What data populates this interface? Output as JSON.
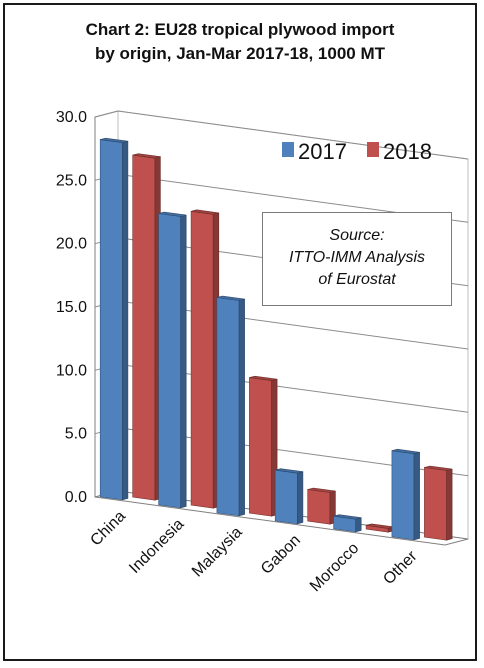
{
  "chart_data": {
    "type": "bar",
    "title_lines": [
      "Chart 2: EU28 tropical plywood import",
      "by origin, Jan-Mar 2017-18, 1000 MT"
    ],
    "categories": [
      "China",
      "Indonesia",
      "Malaysia",
      "Gabon",
      "Morocco",
      "Other"
    ],
    "series": [
      {
        "name": "2017",
        "color": "#4f81bd",
        "values": [
          28.2,
          23.0,
          17.0,
          4.0,
          1.0,
          6.8
        ]
      },
      {
        "name": "2018",
        "color": "#c0504d",
        "values": [
          27.0,
          23.2,
          10.7,
          2.5,
          0.3,
          5.5
        ]
      }
    ],
    "yticks": [
      "0.0",
      "5.0",
      "10.0",
      "15.0",
      "20.0",
      "25.0",
      "30.0"
    ],
    "ylim": [
      0,
      30
    ],
    "grid": true,
    "legend_position": "top-right",
    "annotation_lines": [
      "Source:",
      "ITTO-IMM Analysis",
      "of Eurostat"
    ]
  }
}
